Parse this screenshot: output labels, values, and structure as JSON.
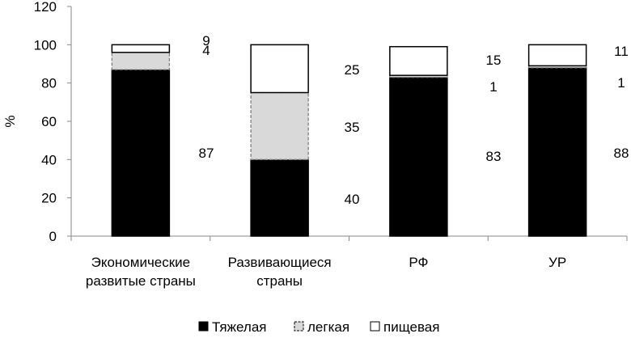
{
  "chart_data": {
    "type": "bar",
    "stacked": true,
    "title": "",
    "xlabel": "",
    "ylabel": "%",
    "ylim": [
      0,
      120
    ],
    "yticks": [
      0,
      20,
      40,
      60,
      80,
      100,
      120
    ],
    "grid": false,
    "legend_position": "bottom",
    "categories": [
      [
        "Экономические",
        "развитые страны"
      ],
      [
        "Развивающиеся",
        "страны"
      ],
      [
        "РФ"
      ],
      [
        "УР"
      ]
    ],
    "series": [
      {
        "name": "Тяжелая",
        "values": [
          87,
          40,
          83,
          88
        ],
        "color": "#000000"
      },
      {
        "name": "легкая",
        "values": [
          9,
          35,
          1,
          1
        ],
        "color": "#d9d9d9"
      },
      {
        "name": "пищевая",
        "values": [
          4,
          25,
          15,
          11
        ],
        "color": "#ffffff"
      }
    ]
  }
}
